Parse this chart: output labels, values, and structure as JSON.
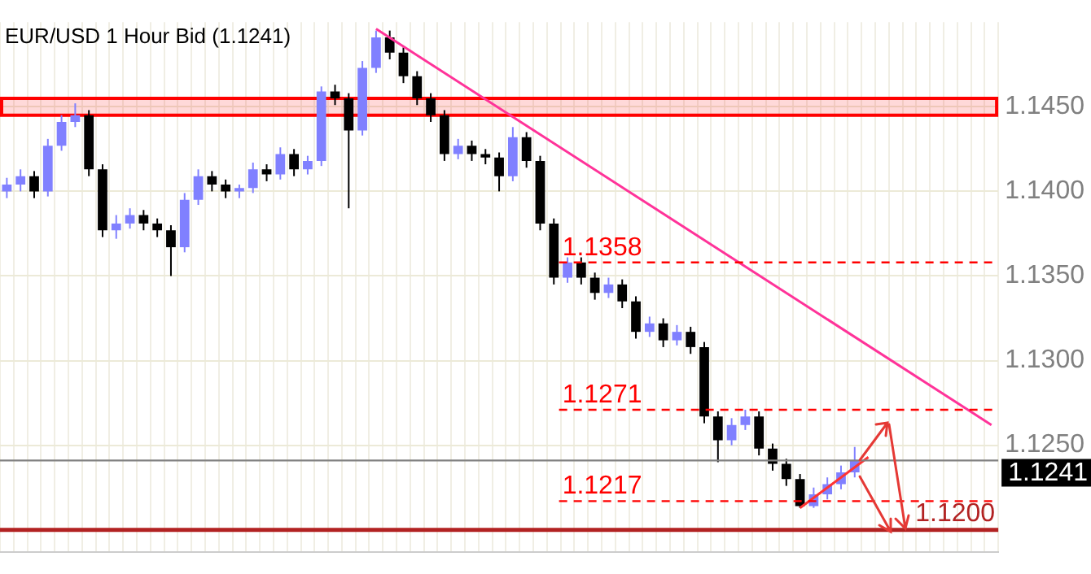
{
  "chart_data": {
    "type": "candlestick",
    "title": "EUR/USD 1 Hour Bid (1.1241)",
    "categories": [
      null,
      null,
      null,
      null,
      null,
      null,
      null,
      null,
      null,
      null,
      null,
      null,
      null,
      null,
      null,
      null,
      null,
      null,
      null,
      null,
      null,
      null,
      null,
      null,
      null,
      null,
      null,
      null,
      null,
      null,
      null,
      null,
      null,
      null,
      null,
      null,
      null,
      null,
      null,
      null,
      null,
      null,
      null,
      null,
      null,
      null,
      null,
      null,
      null,
      null,
      null,
      null,
      null,
      null,
      null,
      null,
      null,
      null,
      null,
      null,
      null,
      null,
      null,
      null,
      null,
      null,
      null,
      null,
      null,
      null,
      null,
      null,
      null
    ],
    "ohlc": [
      [
        1.14,
        1.1408,
        1.1396,
        1.1404
      ],
      [
        1.1404,
        1.1413,
        1.14,
        1.1409
      ],
      [
        1.1409,
        1.1412,
        1.1396,
        1.14
      ],
      [
        1.14,
        1.1431,
        1.1397,
        1.1427
      ],
      [
        1.1427,
        1.1445,
        1.1424,
        1.1441
      ],
      [
        1.1441,
        1.1452,
        1.1438,
        1.1445
      ],
      [
        1.1445,
        1.1448,
        1.1409,
        1.1413
      ],
      [
        1.1413,
        1.1416,
        1.1373,
        1.1377
      ],
      [
        1.1377,
        1.1386,
        1.1372,
        1.1381
      ],
      [
        1.1381,
        1.139,
        1.1378,
        1.1386
      ],
      [
        1.1386,
        1.1389,
        1.1377,
        1.1381
      ],
      [
        1.1381,
        1.1384,
        1.1373,
        1.1377
      ],
      [
        1.1377,
        1.138,
        1.135,
        1.1367
      ],
      [
        1.1367,
        1.1399,
        1.1364,
        1.1395
      ],
      [
        1.1395,
        1.1413,
        1.1392,
        1.1409
      ],
      [
        1.1409,
        1.1412,
        1.14,
        1.1404
      ],
      [
        1.1404,
        1.1407,
        1.1396,
        1.14
      ],
      [
        1.14,
        1.1404,
        1.1396,
        1.1402
      ],
      [
        1.1402,
        1.1417,
        1.1399,
        1.1413
      ],
      [
        1.1413,
        1.1416,
        1.1406,
        1.141
      ],
      [
        1.141,
        1.1426,
        1.1407,
        1.1422
      ],
      [
        1.1422,
        1.1425,
        1.1409,
        1.1413
      ],
      [
        1.1413,
        1.1421,
        1.141,
        1.1418
      ],
      [
        1.1418,
        1.1462,
        1.1415,
        1.1459
      ],
      [
        1.1459,
        1.1463,
        1.1451,
        1.1455
      ],
      [
        1.1455,
        1.1458,
        1.139,
        1.1436
      ],
      [
        1.1436,
        1.1477,
        1.1433,
        1.1473
      ],
      [
        1.1473,
        1.1495,
        1.147,
        1.1491
      ],
      [
        1.1491,
        1.1495,
        1.1478,
        1.1482
      ],
      [
        1.1482,
        1.1485,
        1.1464,
        1.1468
      ],
      [
        1.1468,
        1.1471,
        1.1451,
        1.1455
      ],
      [
        1.1455,
        1.1458,
        1.1441,
        1.1445
      ],
      [
        1.1445,
        1.1448,
        1.1418,
        1.1422
      ],
      [
        1.1422,
        1.1431,
        1.1419,
        1.1427
      ],
      [
        1.1427,
        1.143,
        1.1418,
        1.1422
      ],
      [
        1.1422,
        1.1425,
        1.1416,
        1.142
      ],
      [
        1.142,
        1.1423,
        1.14,
        1.1409
      ],
      [
        1.1409,
        1.1438,
        1.1406,
        1.1432
      ],
      [
        1.1432,
        1.1435,
        1.1414,
        1.1418
      ],
      [
        1.1418,
        1.1421,
        1.1377,
        1.1381
      ],
      [
        1.1381,
        1.1384,
        1.1345,
        1.1349
      ],
      [
        1.1349,
        1.1361,
        1.1346,
        1.1358
      ],
      [
        1.1358,
        1.1361,
        1.1345,
        1.1349
      ],
      [
        1.1349,
        1.1352,
        1.1336,
        1.134
      ],
      [
        1.134,
        1.1349,
        1.1337,
        1.1345
      ],
      [
        1.1345,
        1.1348,
        1.1331,
        1.1335
      ],
      [
        1.1335,
        1.1338,
        1.1313,
        1.1317
      ],
      [
        1.1317,
        1.1326,
        1.1314,
        1.1322
      ],
      [
        1.1322,
        1.1325,
        1.1308,
        1.1312
      ],
      [
        1.1312,
        1.1321,
        1.1309,
        1.1317
      ],
      [
        1.1317,
        1.132,
        1.1304,
        1.1308
      ],
      [
        1.1308,
        1.1311,
        1.1263,
        1.1267
      ],
      [
        1.1267,
        1.127,
        1.124,
        1.1253
      ],
      [
        1.1253,
        1.1266,
        1.125,
        1.1262
      ],
      [
        1.1262,
        1.1271,
        1.1259,
        1.1267
      ],
      [
        1.1267,
        1.127,
        1.1244,
        1.1248
      ],
      [
        1.1248,
        1.1251,
        1.1235,
        1.1239
      ],
      [
        1.1239,
        1.1242,
        1.1226,
        1.123
      ],
      [
        1.123,
        1.1233,
        1.1213,
        1.1214
      ],
      [
        1.1214,
        1.1225,
        1.1213,
        1.1221
      ],
      [
        1.1221,
        1.1231,
        1.1218,
        1.1227
      ],
      [
        1.1227,
        1.1238,
        1.1224,
        1.1234
      ],
      [
        1.1234,
        1.1249,
        1.1231,
        1.1241
      ],
      null,
      null,
      null,
      null,
      null,
      null,
      null,
      null,
      null,
      null
    ],
    "colors": [
      "#8080ff",
      "#8080ff",
      "#000000",
      "#8080ff",
      "#8080ff",
      "#8080ff",
      "#000000",
      "#000000",
      "#8080ff",
      "#8080ff",
      "#000000",
      "#000000",
      "#000000",
      "#8080ff",
      "#8080ff",
      "#000000",
      "#000000",
      "#8080ff",
      "#8080ff",
      "#000000",
      "#8080ff",
      "#000000",
      "#8080ff",
      "#8080ff",
      "#000000",
      "#000000",
      "#8080ff",
      "#8080ff",
      "#000000",
      "#000000",
      "#000000",
      "#000000",
      "#000000",
      "#8080ff",
      "#000000",
      "#000000",
      "#000000",
      "#8080ff",
      "#000000",
      "#000000",
      "#000000",
      "#8080ff",
      "#000000",
      "#000000",
      "#8080ff",
      "#000000",
      "#000000",
      "#8080ff",
      "#000000",
      "#8080ff",
      "#000000",
      "#000000",
      "#000000",
      "#8080ff",
      "#8080ff",
      "#000000",
      "#000000",
      "#000000",
      "#000000",
      "#8080ff",
      "#8080ff",
      "#8080ff",
      "#8080ff",
      null,
      null,
      null,
      null,
      null,
      null,
      null,
      null,
      null,
      null
    ],
    "series": [
      {
        "type": "line",
        "color": "#ff3399",
        "values": [
          null,
          null,
          null,
          null,
          null,
          null,
          null,
          null,
          null,
          null,
          null,
          null,
          null,
          null,
          null,
          null,
          null,
          null,
          null,
          null,
          null,
          null,
          null,
          null,
          null,
          null,
          null,
          1.1496,
          null,
          null,
          null,
          null,
          null,
          null,
          null,
          null,
          null,
          null,
          null,
          null,
          null,
          null,
          null,
          null,
          null,
          null,
          null,
          null,
          null,
          null,
          null,
          null,
          null,
          null,
          null,
          null,
          null,
          null,
          null,
          null,
          null,
          null,
          null,
          null,
          null,
          null,
          null,
          null,
          null,
          null,
          null,
          null,
          1.1262
        ]
      },
      {
        "type": "line",
        "color": "#ff3333",
        "values": [
          null,
          null,
          null,
          null,
          null,
          null,
          null,
          null,
          null,
          null,
          null,
          null,
          null,
          null,
          null,
          null,
          null,
          null,
          null,
          null,
          null,
          null,
          null,
          null,
          null,
          null,
          null,
          null,
          null,
          null,
          null,
          null,
          null,
          null,
          null,
          null,
          null,
          null,
          null,
          null,
          null,
          null,
          null,
          null,
          null,
          null,
          null,
          null,
          null,
          null,
          null,
          null,
          null,
          null,
          null,
          null,
          null,
          null,
          1.1213,
          null,
          null,
          null,
          null,
          1.1243,
          null,
          null,
          null,
          null,
          null,
          null,
          null,
          null,
          null
        ]
      }
    ],
    "ylim": [
      1.1187,
      1.15
    ],
    "yticks": [
      {
        "value": 1.125,
        "label": "1.1250"
      },
      {
        "value": 1.13,
        "label": "1.1300"
      },
      {
        "value": 1.135,
        "label": "1.1350"
      },
      {
        "value": 1.14,
        "label": "1.1400"
      },
      {
        "value": 1.145,
        "label": "1.1450"
      }
    ],
    "tick_labels": "y",
    "grid": true,
    "legend": false,
    "bands": [
      {
        "axis": "y",
        "from": 1.1445,
        "to": 1.1455,
        "color": "#ff0000"
      }
    ],
    "ref_lines": [
      {
        "axis": "y",
        "value": 1.1358,
        "label": "1.1358",
        "color": "#ff0000",
        "line_style": "dashed"
      },
      {
        "axis": "y",
        "value": 1.1271,
        "label": "1.1271",
        "color": "#ff0000",
        "line_style": "dashed"
      },
      {
        "axis": "y",
        "value": 1.1217,
        "label": "1.1217",
        "color": "#ff0000",
        "line_style": "dashed"
      },
      {
        "axis": "y",
        "value": 1.12,
        "label": "1.1200",
        "color": "#b22222",
        "line_style": "solid"
      },
      {
        "axis": "y",
        "value": 1.1241,
        "label": "1.1241",
        "color": "#808080",
        "line_style": "solid"
      }
    ]
  }
}
